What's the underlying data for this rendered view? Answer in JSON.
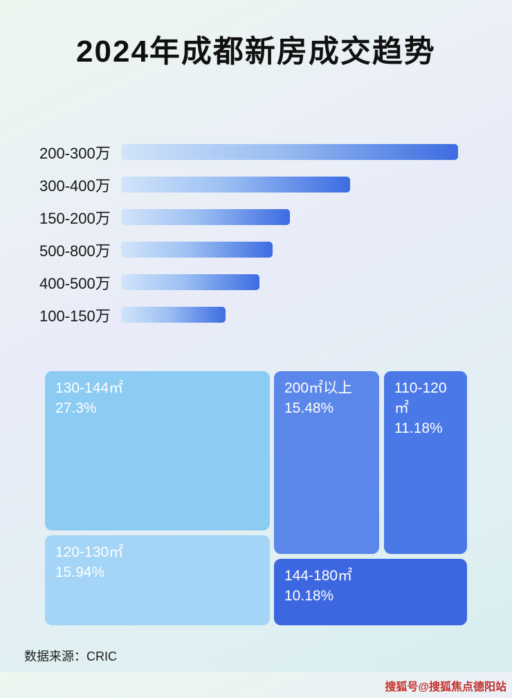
{
  "page": {
    "title": "2024年成都新房成交趋势",
    "source": "数据来源：CRIC",
    "watermark": "搜狐号@搜狐焦点德阳站"
  },
  "colors": {
    "bar_gradient_start": "#d2e4fa",
    "bar_gradient_end": "#3d6ce2",
    "tile_130_144": "#8ccbf2",
    "tile_120_130": "#a4d5f6",
    "tile_200_plus": "#5b87ea",
    "tile_110_120": "#4a78e7",
    "tile_144_180": "#3d67e0",
    "watermark_red": "#c32f2a",
    "title_text": "#101010"
  },
  "chart_data": [
    {
      "type": "bar",
      "orientation": "horizontal",
      "categories": [
        "200-300万",
        "300-400万",
        "150-200万",
        "500-800万",
        "400-500万",
        "100-150万"
      ],
      "values": [
        100,
        68,
        50,
        45,
        41,
        31
      ],
      "value_note": "relative bar length as % of longest bar; no axis or data labels shown",
      "axis": "none",
      "grid": false,
      "legend": "none"
    },
    {
      "type": "treemap",
      "items": [
        {
          "label": "130-144㎡",
          "percent": "27.3%",
          "value": 27.3
        },
        {
          "label": "120-130㎡",
          "percent": "15.94%",
          "value": 15.94
        },
        {
          "label": "200㎡以上",
          "percent": "15.48%",
          "value": 15.48
        },
        {
          "label": "110-120㎡",
          "percent": "11.18%",
          "value": 11.18
        },
        {
          "label": "144-180㎡",
          "percent": "10.18%",
          "value": 10.18
        }
      ],
      "legend": "none"
    }
  ]
}
